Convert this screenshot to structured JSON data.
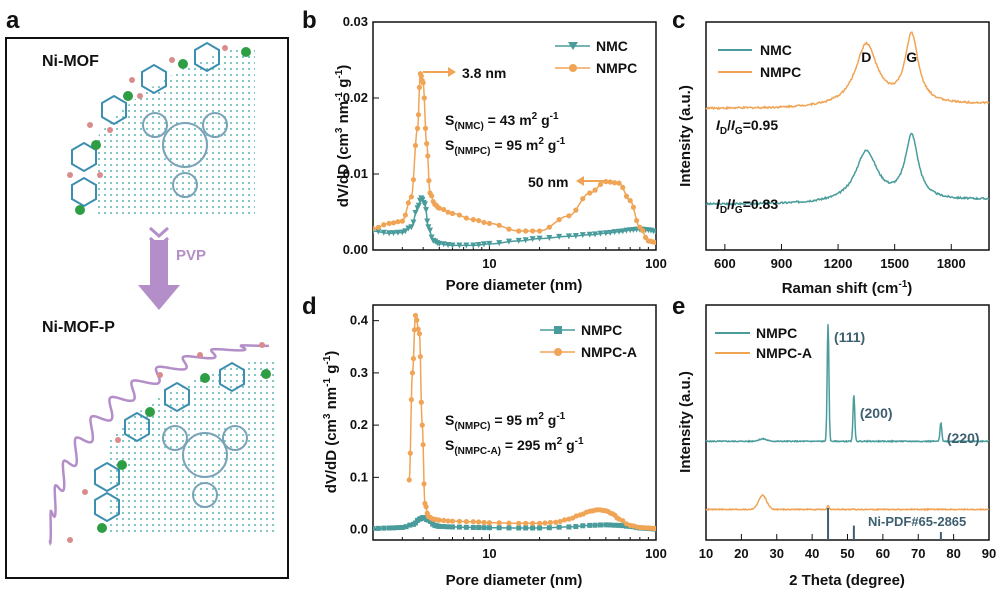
{
  "colors": {
    "nmc": "#4a9c9c",
    "nmpc": "#f0a455",
    "axis": "#111111",
    "peak_label": "#3d5f70",
    "helix": "#b48ec8",
    "arrow": "#b48ec8",
    "atom_green": "#2e9e44",
    "atom_pink": "#d98c8c",
    "ring": "#3d8fb0"
  },
  "panel_a": {
    "label": "a",
    "top_title": "Ni-MOF",
    "arrow_text": "PVP",
    "bottom_title": "Ni-MOF-P"
  },
  "panel_b": {
    "label": "b",
    "chart_data": {
      "type": "line",
      "xscale": "log",
      "xlim": [
        2,
        100
      ],
      "ylim": [
        0,
        0.03
      ],
      "xlabel": "Pore diameter (nm)",
      "ylabel_main": "dV/dD (cm",
      "ylabel_sup1": "3",
      "ylabel_mid": " nm",
      "ylabel_sup2": "-1",
      "ylabel_mid2": " g",
      "ylabel_sup3": "-1",
      "ylabel_end": ")",
      "xticks": [
        {
          "v": 10,
          "t": "10"
        },
        {
          "v": 100,
          "t": "100"
        }
      ],
      "yticks": [
        {
          "v": 0,
          "t": "0.00"
        },
        {
          "v": 0.01,
          "t": "0.01"
        },
        {
          "v": 0.02,
          "t": "0.02"
        },
        {
          "v": 0.03,
          "t": "0.03"
        }
      ],
      "legend": [
        "NMC",
        "NMPC"
      ],
      "series": [
        {
          "name": "NMC",
          "x": [
            2,
            2.5,
            3,
            3.4,
            3.7,
            3.9,
            4.1,
            4.3,
            4.6,
            5,
            6,
            8,
            10,
            15,
            20,
            30,
            40,
            50,
            60,
            70,
            80,
            90,
            100
          ],
          "y": [
            0.0025,
            0.0022,
            0.0023,
            0.003,
            0.0055,
            0.0068,
            0.006,
            0.003,
            0.0012,
            0.0008,
            0.0006,
            0.0006,
            0.0008,
            0.0012,
            0.0015,
            0.0018,
            0.002,
            0.0022,
            0.0024,
            0.0026,
            0.0027,
            0.0026,
            0.0024
          ]
        },
        {
          "name": "NMPC",
          "x": [
            2,
            2.5,
            3,
            3.4,
            3.7,
            3.85,
            4,
            4.2,
            4.4,
            4.7,
            5,
            6,
            8,
            10,
            15,
            20,
            30,
            40,
            50,
            60,
            70,
            80,
            90,
            100
          ],
          "y": [
            0.0028,
            0.0035,
            0.0038,
            0.007,
            0.016,
            0.0232,
            0.022,
            0.014,
            0.0075,
            0.006,
            0.0055,
            0.0048,
            0.004,
            0.0035,
            0.0025,
            0.0025,
            0.0045,
            0.0075,
            0.009,
            0.0088,
            0.0065,
            0.003,
            0.0012,
            0.001
          ]
        }
      ],
      "annotations": {
        "peak1": "3.8 nm",
        "peak2": "50 nm",
        "s1_pre": "S",
        "s1_sub": "(NMC)",
        "s1_val": " = 43 m",
        "s1_sup": "2",
        "s1_unit": " g",
        "s1_sup2": "-1",
        "s2_pre": "S",
        "s2_sub": "(NMPC)",
        "s2_val": " = 95 m",
        "s2_sup": "2",
        "s2_unit": " g",
        "s2_sup2": "-1"
      }
    }
  },
  "panel_c": {
    "label": "c",
    "chart_data": {
      "type": "line",
      "xlim": [
        500,
        2000
      ],
      "ylim": [
        0,
        1
      ],
      "xlabel_main": "Raman shift (cm",
      "xlabel_sup": "-1",
      "xlabel_end": ")",
      "ylabel": "Intensity (a.u.)",
      "xticks": [
        {
          "v": 600,
          "t": "600"
        },
        {
          "v": 900,
          "t": "900"
        },
        {
          "v": 1200,
          "t": "1200"
        },
        {
          "v": 1500,
          "t": "1500"
        },
        {
          "v": 1800,
          "t": "1800"
        }
      ],
      "legend": [
        "NMC",
        "NMPC"
      ],
      "peaks": [
        {
          "t": "D",
          "v": 1350
        },
        {
          "t": "G",
          "v": 1590
        }
      ],
      "series": [
        {
          "name": "NMC",
          "offset": 0.2,
          "d_height": 0.22,
          "g_height": 0.28
        },
        {
          "name": "NMPC",
          "offset": 0.62,
          "d_height": 0.27,
          "g_height": 0.3
        }
      ],
      "annotations": {
        "r1_i": "I",
        "r1_d": "D",
        "r1_slash": "/",
        "r1_i2": "I",
        "r1_g": "G",
        "r1_val": "=0.95",
        "r2_i": "I",
        "r2_d": "D",
        "r2_slash": "/",
        "r2_i2": "I",
        "r2_g": "G",
        "r2_val": "=0.83"
      }
    }
  },
  "panel_d": {
    "label": "d",
    "chart_data": {
      "type": "line",
      "xscale": "log",
      "xlim": [
        2,
        100
      ],
      "ylim": [
        -0.02,
        0.43
      ],
      "xlabel": "Pore diameter (nm)",
      "ylabel_main": "dV/dD (cm",
      "ylabel_sup1": "3",
      "ylabel_mid": " nm",
      "ylabel_sup2": "-1",
      "ylabel_mid2": " g",
      "ylabel_sup3": "-1",
      "ylabel_end": ")",
      "xticks": [
        {
          "v": 10,
          "t": "10"
        },
        {
          "v": 100,
          "t": "100"
        }
      ],
      "yticks": [
        {
          "v": 0,
          "t": "0.0"
        },
        {
          "v": 0.1,
          "t": "0.1"
        },
        {
          "v": 0.2,
          "t": "0.2"
        },
        {
          "v": 0.3,
          "t": "0.3"
        },
        {
          "v": 0.4,
          "t": "0.4"
        }
      ],
      "legend": [
        "NMPC",
        "NMPC-A"
      ],
      "series": [
        {
          "name": "NMPC",
          "x": [
            2,
            2.5,
            3,
            3.5,
            3.8,
            4,
            4.3,
            4.7,
            5,
            6,
            8,
            10,
            15,
            20,
            30,
            40,
            50,
            60,
            70,
            80,
            90,
            100
          ],
          "y": [
            0.002,
            0.003,
            0.004,
            0.01,
            0.02,
            0.023,
            0.018,
            0.008,
            0.006,
            0.005,
            0.004,
            0.0035,
            0.003,
            0.003,
            0.005,
            0.008,
            0.009,
            0.008,
            0.006,
            0.003,
            0.002,
            0.001
          ]
        },
        {
          "name": "NMPC-A",
          "x": [
            3.3,
            3.45,
            3.6,
            3.8,
            3.95,
            4.1,
            4.3,
            4.6,
            5,
            6,
            8,
            10,
            15,
            20,
            25,
            30,
            35,
            40,
            45,
            50,
            55,
            60,
            70,
            80,
            90,
            100
          ],
          "y": [
            0.095,
            0.3,
            0.41,
            0.375,
            0.2,
            0.05,
            0.025,
            0.02,
            0.018,
            0.016,
            0.015,
            0.013,
            0.012,
            0.012,
            0.014,
            0.02,
            0.028,
            0.035,
            0.038,
            0.036,
            0.03,
            0.02,
            0.008,
            0.004,
            0.003,
            0.002
          ]
        }
      ],
      "annotations": {
        "s1_pre": "S",
        "s1_sub": "(NMPC)",
        "s1_val": " = 95 m",
        "s1_sup": "2",
        "s1_unit": " g",
        "s1_sup2": "-1",
        "s2_pre": "S",
        "s2_sub": "(NMPC-A)",
        "s2_val": " = 295 m",
        "s2_sup": "2",
        "s2_unit": " g",
        "s2_sup2": "-1"
      }
    }
  },
  "panel_e": {
    "label": "e",
    "chart_data": {
      "type": "line",
      "xlim": [
        10,
        90
      ],
      "ylim": [
        0,
        1
      ],
      "xlabel": "2 Theta (degree)",
      "ylabel": "Intensity (a.u.)",
      "xticks": [
        {
          "v": 10,
          "t": "10"
        },
        {
          "v": 20,
          "t": "20"
        },
        {
          "v": 30,
          "t": "30"
        },
        {
          "v": 40,
          "t": "40"
        },
        {
          "v": 50,
          "t": "50"
        },
        {
          "v": 60,
          "t": "60"
        },
        {
          "v": 70,
          "t": "70"
        },
        {
          "v": 80,
          "t": "80"
        },
        {
          "v": 90,
          "t": "90"
        }
      ],
      "legend": [
        "NMPC",
        "NMPC-A"
      ],
      "peak_labels": [
        {
          "t": "(111)",
          "v": 44.5
        },
        {
          "t": "(200)",
          "v": 51.8
        },
        {
          "t": "(220)",
          "v": 76.4
        }
      ],
      "reference": {
        "name": "Ni-PDF#65-2865",
        "x": [
          44.5,
          51.8,
          76.4
        ],
        "h": [
          1,
          0.45,
          0.25
        ]
      },
      "series": [
        {
          "name": "NMPC",
          "offset": 0.42,
          "peaks": [
            {
              "x": 44.5,
              "h": 0.5
            },
            {
              "x": 51.8,
              "h": 0.2
            },
            {
              "x": 76.4,
              "h": 0.08
            },
            {
              "x": 26,
              "h": 0.01
            }
          ]
        },
        {
          "name": "NMPC-A",
          "offset": 0.13,
          "peaks": [
            {
              "x": 26,
              "h": 0.06
            },
            {
              "x": 44.5,
              "h": 0.015
            }
          ]
        }
      ]
    }
  }
}
